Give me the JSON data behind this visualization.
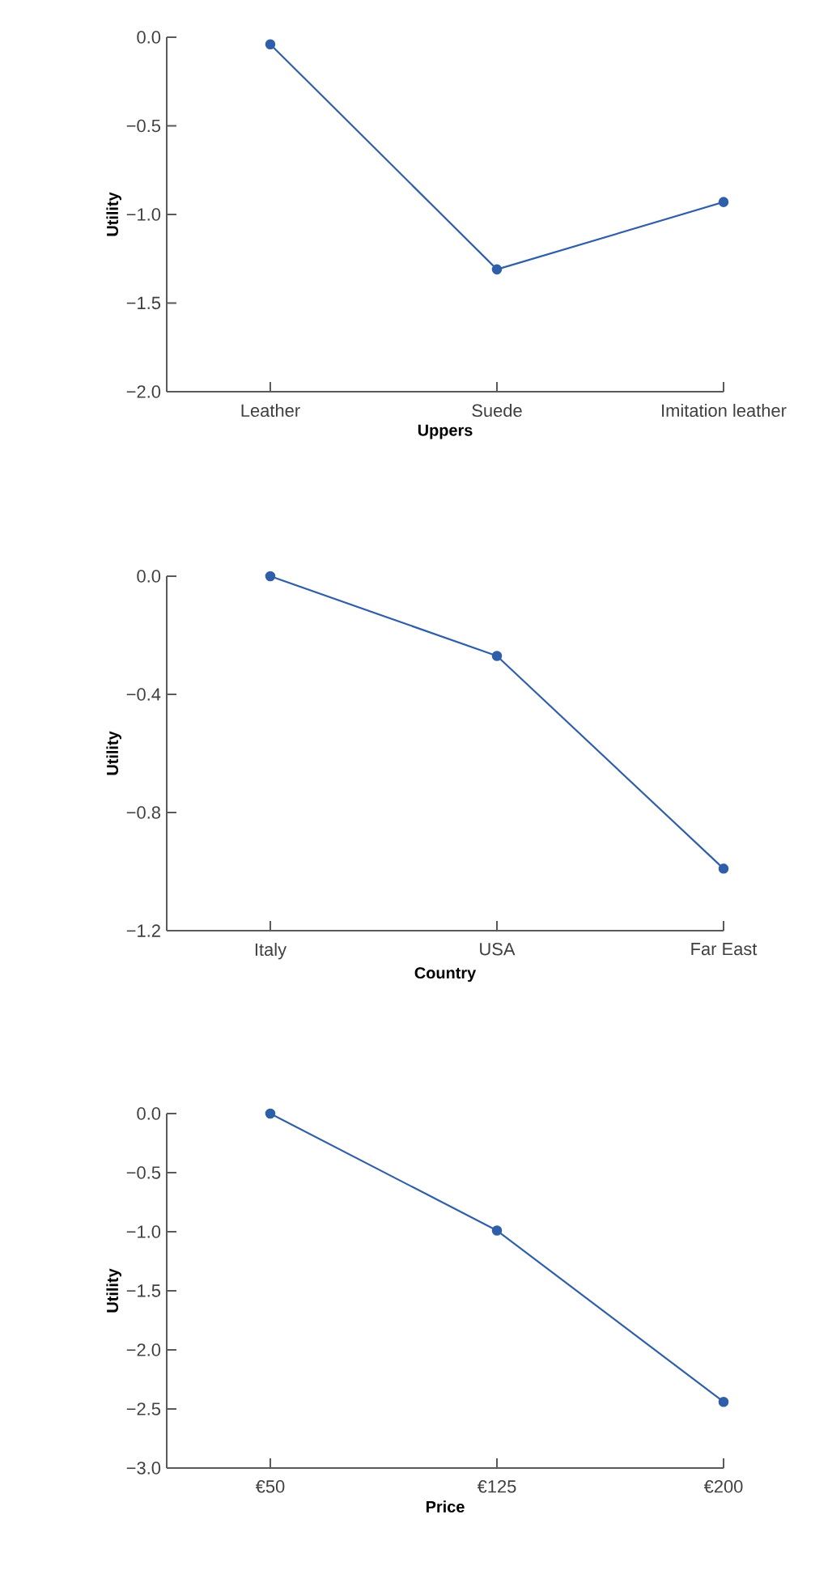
{
  "chart_data": [
    {
      "type": "line",
      "xlabel": "Uppers",
      "ylabel": "Utility",
      "categories": [
        "Leather",
        "Suede",
        "Imitation leather"
      ],
      "series": [
        {
          "color": "#2f5fa8",
          "values": [
            -0.04,
            -1.31,
            -0.93
          ]
        }
      ],
      "ylim": [
        -2.0,
        0.0
      ],
      "yticks": [
        {
          "value": 0,
          "label": "0.0"
        },
        {
          "value": -0.5,
          "label": "−0.5"
        },
        {
          "value": -1,
          "label": "−1.0"
        },
        {
          "value": -1.5,
          "label": "−1.5"
        },
        {
          "value": -2,
          "label": "−2.0"
        }
      ],
      "marker": "circle",
      "line_style": "solid",
      "grid": false
    },
    {
      "type": "line",
      "xlabel": "Country",
      "ylabel": "Utility",
      "categories": [
        "Italy",
        "USA",
        "Far East"
      ],
      "series": [
        {
          "color": "#2f5fa8",
          "values": [
            0.0,
            -0.27,
            -0.99
          ]
        }
      ],
      "ylim": [
        -1.2,
        0.0
      ],
      "yticks": [
        {
          "value": 0,
          "label": "0.0"
        },
        {
          "value": -0.4,
          "label": "−0.4"
        },
        {
          "value": -0.8,
          "label": "−0.8"
        },
        {
          "value": -1.2,
          "label": "−1.2"
        }
      ],
      "marker": "circle",
      "line_style": "solid",
      "grid": false
    },
    {
      "type": "line",
      "xlabel": "Price",
      "ylabel": "Utility",
      "categories": [
        "€50",
        "€125",
        "€200"
      ],
      "series": [
        {
          "color": "#2f5fa8",
          "values": [
            0.0,
            -0.99,
            -2.44
          ]
        }
      ],
      "ylim": [
        -3.0,
        0.0
      ],
      "yticks": [
        {
          "value": 0,
          "label": "0.0"
        },
        {
          "value": -0.5,
          "label": "−0.5"
        },
        {
          "value": -1,
          "label": "−1.0"
        },
        {
          "value": -1.5,
          "label": "−1.5"
        },
        {
          "value": -2,
          "label": "−2.0"
        },
        {
          "value": -2.5,
          "label": "−2.5"
        },
        {
          "value": -3,
          "label": "−3.0"
        }
      ],
      "marker": "circle",
      "line_style": "solid",
      "grid": false
    }
  ]
}
